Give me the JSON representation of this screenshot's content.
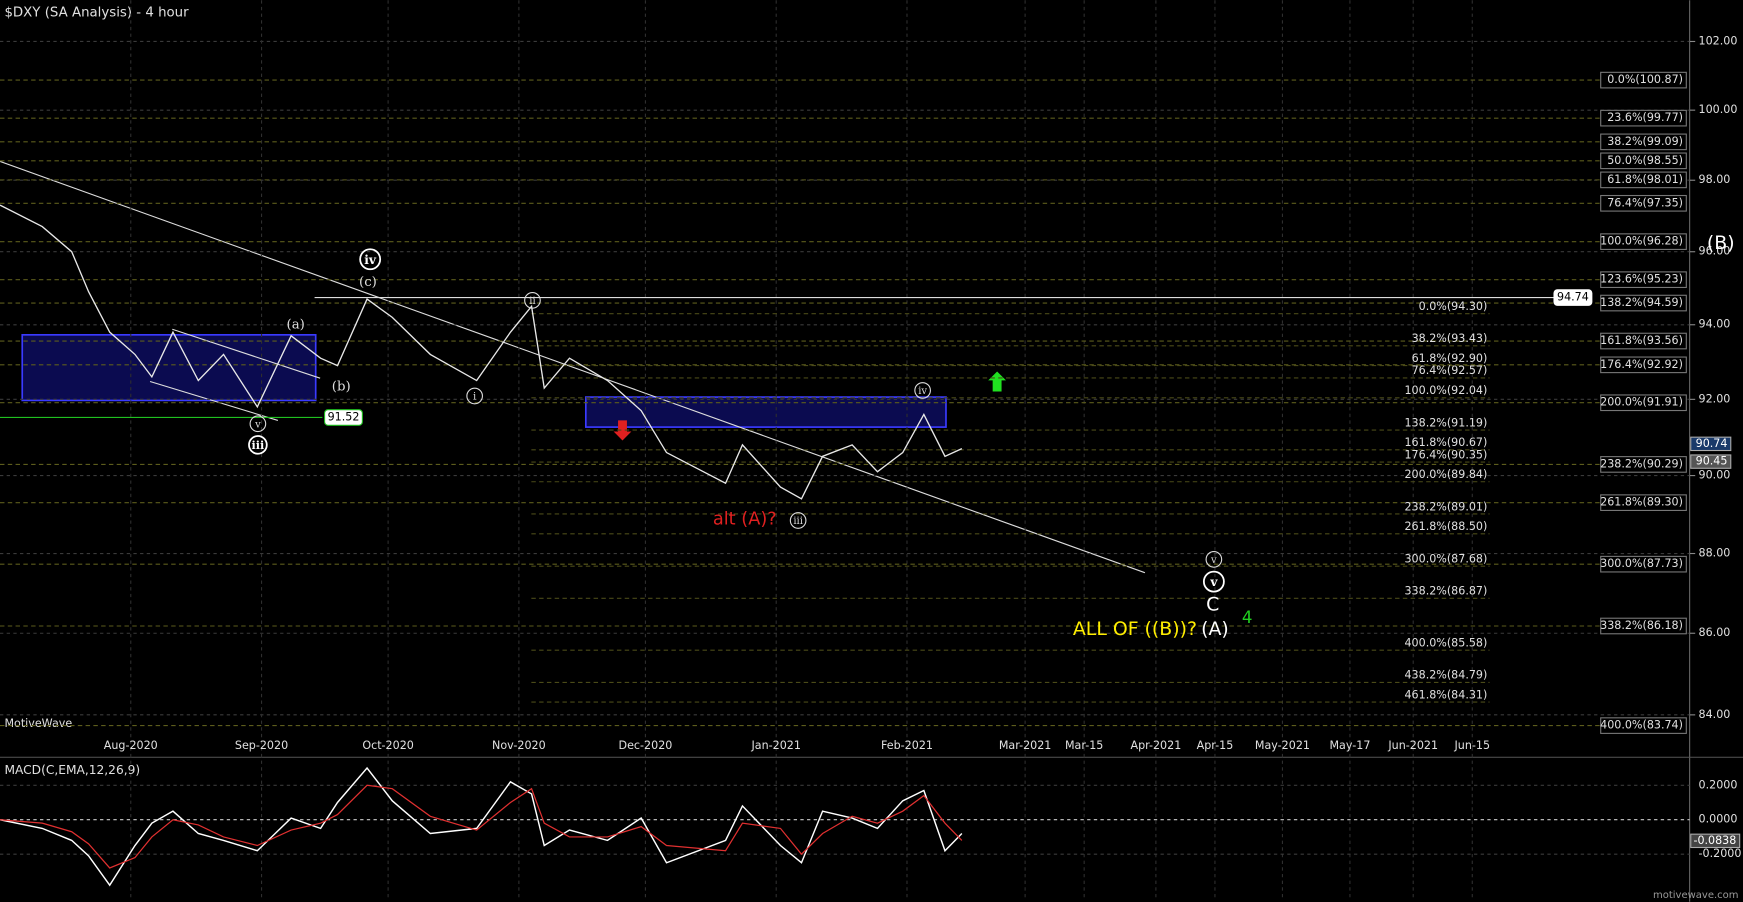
{
  "title": "$DXY (SA Analysis) - 4 hour",
  "watermark": "MotiveWave",
  "footer": "motivewave.com",
  "chart_data": [
    {
      "type": "line",
      "log": true,
      "color": "#e8e8e8",
      "grid": true,
      "xlim": [
        "2020-07-01",
        "2021-08-05"
      ],
      "xticks": [
        {
          "value": "2020-08-01",
          "label": "Aug-2020"
        },
        {
          "value": "2020-09-01",
          "label": "Sep-2020"
        },
        {
          "value": "2020-10-01",
          "label": "Oct-2020"
        },
        {
          "value": "2020-11-01",
          "label": "Nov-2020"
        },
        {
          "value": "2020-12-01",
          "label": "Dec-2020"
        },
        {
          "value": "2021-01-01",
          "label": "Jan-2021"
        },
        {
          "value": "2021-02-01",
          "label": "Feb-2021"
        },
        {
          "value": "2021-03-01",
          "label": "Mar-2021"
        },
        {
          "value": "2021-03-15",
          "label": "Mar-15"
        },
        {
          "value": "2021-04-01",
          "label": "Apr-2021"
        },
        {
          "value": "2021-04-15",
          "label": "Apr-15"
        },
        {
          "value": "2021-05-01",
          "label": "May-2021"
        },
        {
          "value": "2021-05-17",
          "label": "May-17"
        },
        {
          "value": "2021-06-01",
          "label": "Jun-2021"
        },
        {
          "value": "2021-06-15",
          "label": "Jun-15"
        }
      ],
      "ylim": [
        83.54,
        103.22
      ],
      "yticks": [
        {
          "value": 102,
          "label": "102.00"
        },
        {
          "value": 100,
          "label": "100.00"
        },
        {
          "value": 98,
          "label": "98.00"
        },
        {
          "value": 96,
          "label": "96.00"
        },
        {
          "value": 94,
          "label": "94.00"
        },
        {
          "value": 92,
          "label": "92.00"
        },
        {
          "value": 90,
          "label": "90.00"
        },
        {
          "value": 88,
          "label": "88.00"
        },
        {
          "value": 86,
          "label": "86.00"
        },
        {
          "value": 84,
          "label": "84.00"
        }
      ],
      "x": [
        "2020-07-01",
        "2020-07-11",
        "2020-07-18",
        "2020-07-22",
        "2020-07-27",
        "2020-08-02",
        "2020-08-06",
        "2020-08-11",
        "2020-08-17",
        "2020-08-23",
        "2020-08-31",
        "2020-09-08",
        "2020-09-15",
        "2020-09-19",
        "2020-09-26",
        "2020-10-02",
        "2020-10-11",
        "2020-10-22",
        "2020-10-30",
        "2020-11-04",
        "2020-11-07",
        "2020-11-13",
        "2020-11-22",
        "2020-11-30",
        "2020-12-06",
        "2020-12-20",
        "2020-12-24",
        "2021-01-02",
        "2021-01-07",
        "2021-01-12",
        "2021-01-19",
        "2021-01-25",
        "2021-01-31",
        "2021-02-05",
        "2021-02-10",
        "2021-02-14"
      ],
      "values": [
        97.3,
        96.7,
        96.0,
        94.9,
        93.8,
        93.2,
        92.6,
        93.8,
        92.5,
        93.2,
        91.8,
        93.7,
        93.1,
        92.9,
        94.7,
        94.2,
        93.2,
        92.5,
        93.8,
        94.5,
        92.3,
        93.1,
        92.5,
        91.7,
        90.6,
        89.8,
        90.8,
        89.7,
        89.4,
        90.5,
        90.8,
        90.1,
        90.6,
        91.6,
        90.5,
        90.7
      ],
      "fib_right": [
        {
          "value": 100.87,
          "label": "0.0%(100.87)"
        },
        {
          "value": 99.77,
          "label": "23.6%(99.77)"
        },
        {
          "value": 99.09,
          "label": "38.2%(99.09)"
        },
        {
          "value": 98.55,
          "label": "50.0%(98.55)"
        },
        {
          "value": 98.01,
          "label": "61.8%(98.01)"
        },
        {
          "value": 97.35,
          "label": "76.4%(97.35)"
        },
        {
          "value": 96.28,
          "label": "100.0%(96.28)"
        },
        {
          "value": 95.23,
          "label": "123.6%(95.23)"
        },
        {
          "value": 94.59,
          "label": "138.2%(94.59)"
        },
        {
          "value": 93.56,
          "label": "161.8%(93.56)"
        },
        {
          "value": 92.92,
          "label": "176.4%(92.92)"
        },
        {
          "value": 91.91,
          "label": "200.0%(91.91)"
        },
        {
          "value": 90.29,
          "label": "238.2%(90.29)"
        },
        {
          "value": 89.3,
          "label": "261.8%(89.30)"
        },
        {
          "value": 87.73,
          "label": "300.0%(87.73)"
        },
        {
          "value": 86.18,
          "label": "338.2%(86.18)"
        },
        {
          "value": 83.74,
          "label": "400.0%(83.74)"
        }
      ],
      "fib_left": [
        {
          "value": 94.3,
          "label": "0.0%(94.30)"
        },
        {
          "value": 93.43,
          "label": "38.2%(93.43)"
        },
        {
          "value": 92.9,
          "label": "61.8%(92.90)"
        },
        {
          "value": 92.57,
          "label": "76.4%(92.57)"
        },
        {
          "value": 92.04,
          "label": "100.0%(92.04)"
        },
        {
          "value": 91.19,
          "label": "138.2%(91.19)"
        },
        {
          "value": 90.67,
          "label": "161.8%(90.67)"
        },
        {
          "value": 90.35,
          "label": "176.4%(90.35)"
        },
        {
          "value": 89.84,
          "label": "200.0%(89.84)"
        },
        {
          "value": 89.01,
          "label": "238.2%(89.01)"
        },
        {
          "value": 88.5,
          "label": "261.8%(88.50)"
        },
        {
          "value": 87.68,
          "label": "300.0%(87.68)"
        },
        {
          "value": 86.87,
          "label": "338.2%(86.87)"
        },
        {
          "value": 85.58,
          "label": "400.0%(85.58)"
        },
        {
          "value": 84.79,
          "label": "438.2%(84.79)"
        },
        {
          "value": 84.31,
          "label": "461.8%(84.31)"
        }
      ],
      "horizontal_lines": [
        94.74,
        91.52
      ],
      "price_markers": [
        90.74,
        90.45
      ],
      "wave_labels": [
        "(a)",
        "(b)",
        "(c)",
        "iv",
        "iii",
        "v",
        "ii",
        "i",
        "iii",
        "iv",
        "v",
        "v",
        "C",
        "ALL OF ((B))?",
        "(A)",
        "4",
        "alt (A)?",
        "(B)"
      ]
    },
    {
      "type": "line",
      "title": "MACD(C,EMA,12,26,9)",
      "xlim": [
        "2020-07-01",
        "2021-08-05"
      ],
      "ylim": [
        -0.47,
        0.35
      ],
      "yticks": [
        {
          "value": 0.2,
          "label": "0.2000"
        },
        {
          "value": 0,
          "label": "0.0000"
        },
        {
          "value": -0.2,
          "label": "-0.2000"
        }
      ],
      "x": [
        "2020-07-01",
        "2020-07-11",
        "2020-07-18",
        "2020-07-22",
        "2020-07-27",
        "2020-08-02",
        "2020-08-06",
        "2020-08-11",
        "2020-08-17",
        "2020-08-23",
        "2020-08-31",
        "2020-09-08",
        "2020-09-15",
        "2020-09-19",
        "2020-09-26",
        "2020-10-02",
        "2020-10-11",
        "2020-10-22",
        "2020-10-30",
        "2020-11-04",
        "2020-11-07",
        "2020-11-13",
        "2020-11-22",
        "2020-11-30",
        "2020-12-06",
        "2020-12-20",
        "2020-12-24",
        "2021-01-02",
        "2021-01-07",
        "2021-01-12",
        "2021-01-19",
        "2021-01-25",
        "2021-01-31",
        "2021-02-05",
        "2021-02-10",
        "2021-02-14"
      ],
      "macd": [
        0,
        -0.05,
        -0.12,
        -0.21,
        -0.38,
        -0.15,
        -0.02,
        0.05,
        -0.08,
        -0.12,
        -0.18,
        0.01,
        -0.05,
        0.1,
        0.3,
        0.11,
        -0.08,
        -0.05,
        0.22,
        0.15,
        -0.15,
        -0.06,
        -0.12,
        0.01,
        -0.25,
        -0.12,
        0.08,
        -0.15,
        -0.25,
        0.05,
        0.01,
        -0.05,
        0.11,
        0.17,
        -0.18,
        -0.08
      ],
      "signal": [
        0,
        -0.02,
        -0.07,
        -0.14,
        -0.28,
        -0.22,
        -0.1,
        0,
        -0.03,
        -0.1,
        -0.15,
        -0.06,
        -0.02,
        0.03,
        0.2,
        0.18,
        0.02,
        -0.06,
        0.1,
        0.18,
        -0.02,
        -0.1,
        -0.1,
        -0.04,
        -0.15,
        -0.18,
        -0.02,
        -0.05,
        -0.2,
        -0.08,
        0.02,
        -0.02,
        0.05,
        0.14,
        -0.02,
        -0.12
      ],
      "macd_color": "#ffffff",
      "signal_color": "#e03030",
      "last_value": -0.0838
    }
  ]
}
